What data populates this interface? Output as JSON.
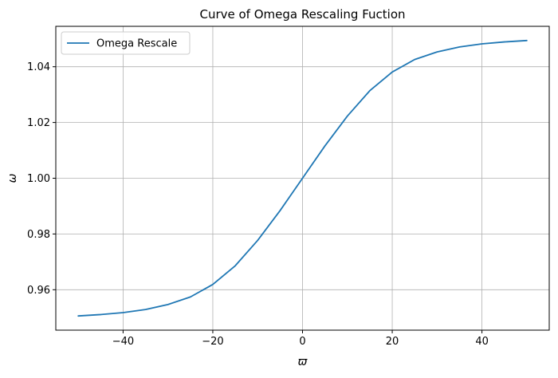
{
  "chart_data": {
    "type": "line",
    "title": "Curve of Omega Rescaling Fuction",
    "xlabel": "ϖ",
    "ylabel": "ω",
    "xlim": [
      -55,
      55
    ],
    "ylim": [
      0.9455,
      1.0545
    ],
    "xticks": [
      -40,
      -20,
      0,
      20,
      40
    ],
    "xtick_labels": [
      "−40",
      "−20",
      "0",
      "20",
      "40"
    ],
    "yticks": [
      0.96,
      0.98,
      1.0,
      1.02,
      1.04
    ],
    "ytick_labels": [
      "0.96",
      "0.98",
      "1.00",
      "1.02",
      "1.04"
    ],
    "grid": true,
    "legend": {
      "position": "top-left",
      "entries": [
        "Omega Rescale"
      ]
    },
    "series": [
      {
        "name": "Omega Rescale",
        "color": "#1f77b4",
        "x": [
          -50,
          -45,
          -40,
          -35,
          -30,
          -25,
          -20,
          -15,
          -10,
          -5,
          0,
          5,
          10,
          15,
          20,
          25,
          30,
          35,
          40,
          45,
          50
        ],
        "y": [
          0.9506,
          0.9511,
          0.9518,
          0.9529,
          0.9547,
          0.9574,
          0.9619,
          0.9686,
          0.9777,
          0.9884,
          1.0,
          1.0116,
          1.0223,
          1.0314,
          1.0381,
          1.0426,
          1.0453,
          1.0471,
          1.0482,
          1.0489,
          1.0494
        ]
      }
    ]
  }
}
